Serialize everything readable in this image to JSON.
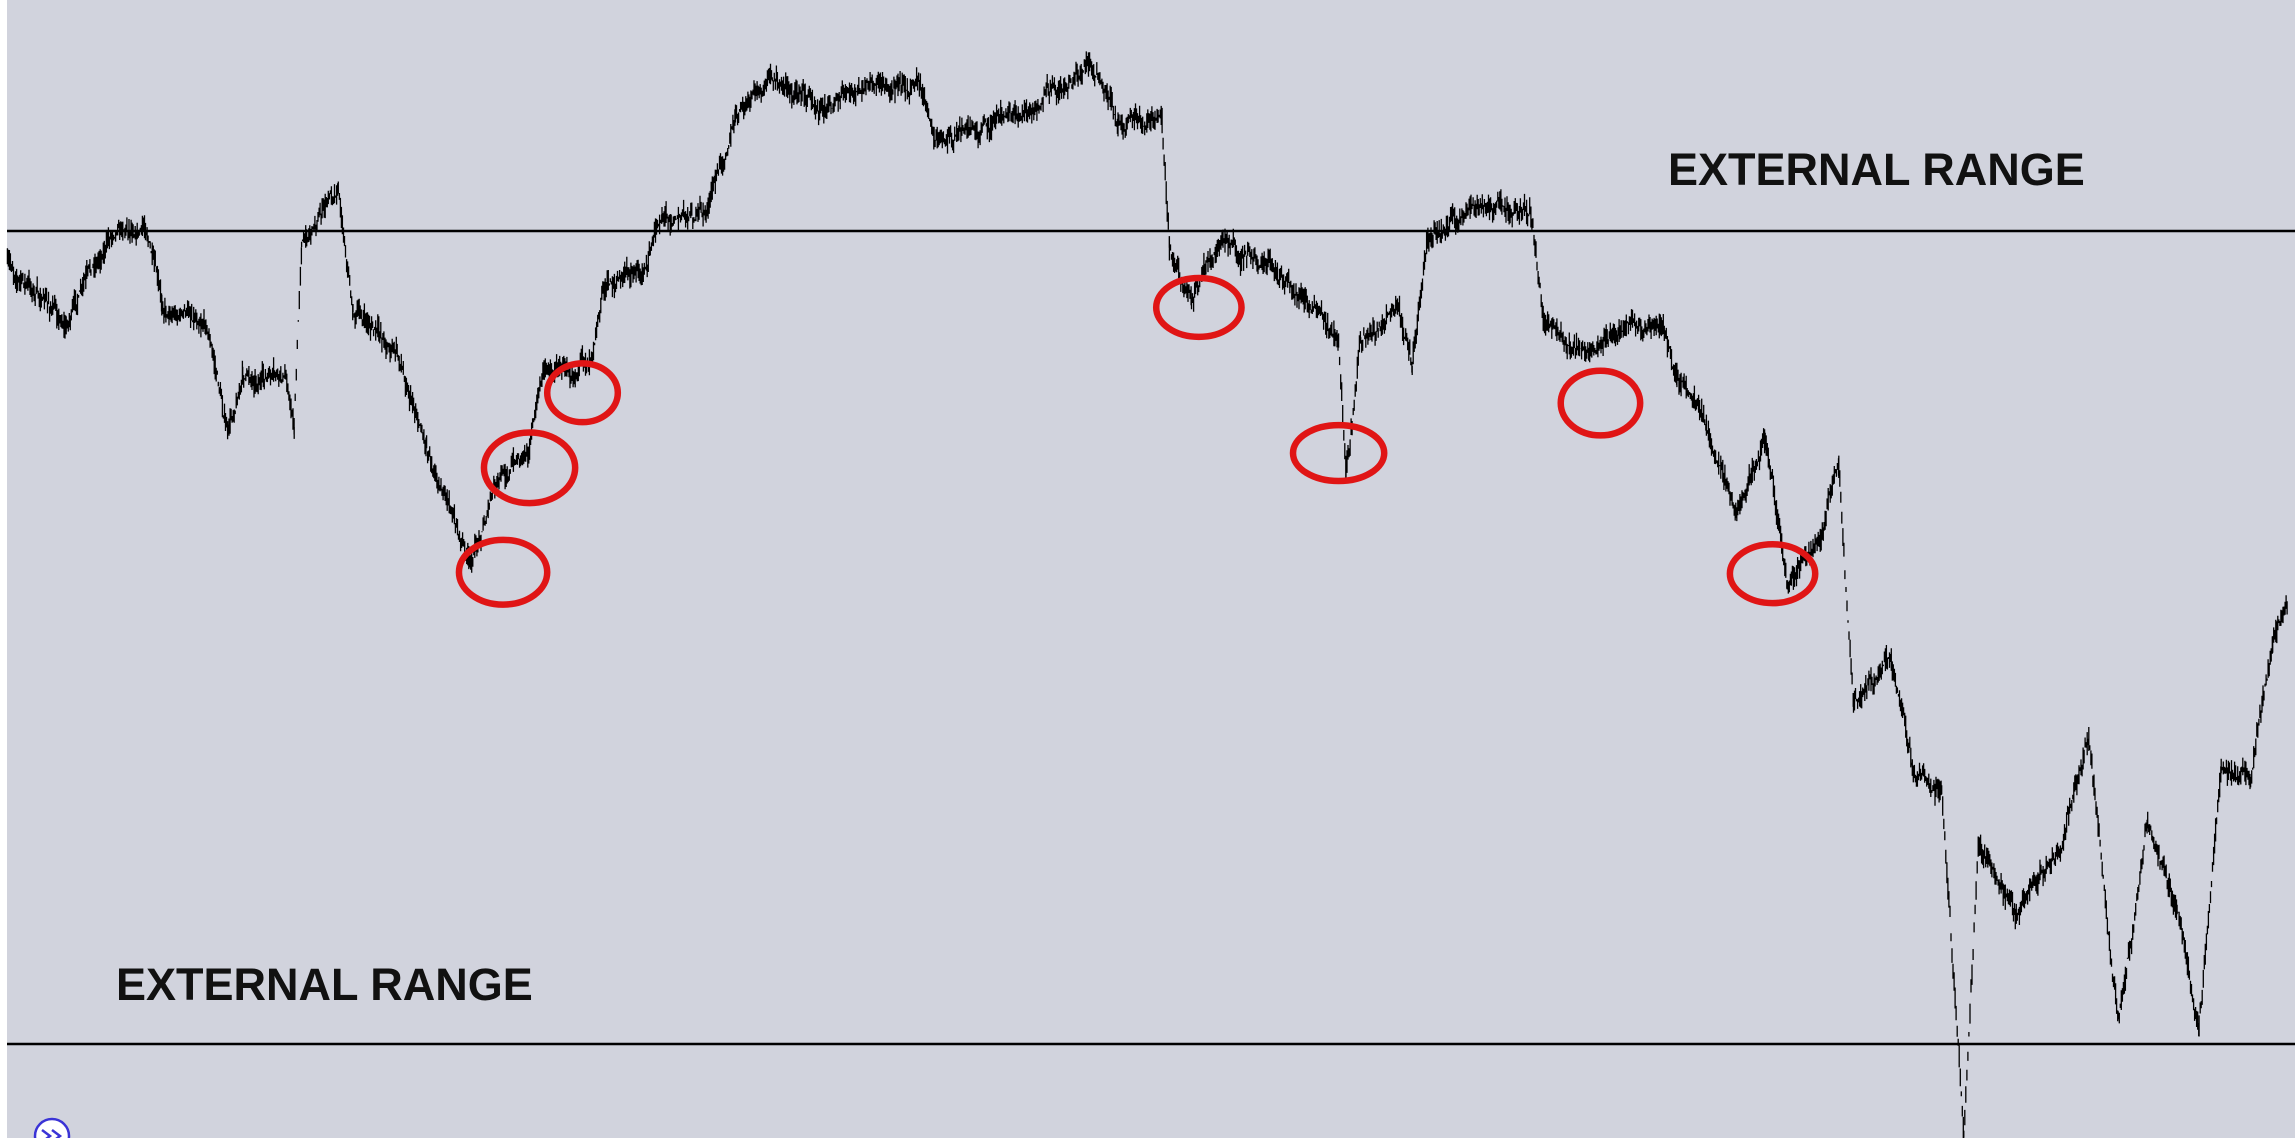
{
  "labels": {
    "top": "EXTERNAL RANGE",
    "bottom": "EXTERNAL RANGE"
  }
}
